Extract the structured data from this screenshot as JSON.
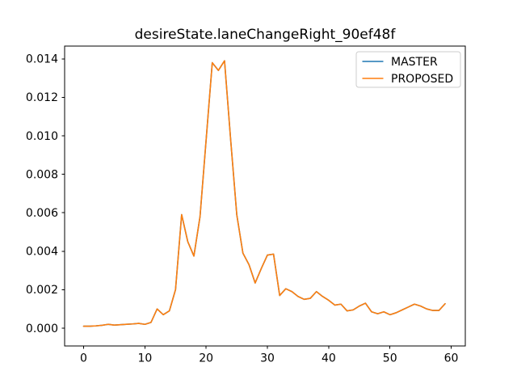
{
  "figure": {
    "background": "#ffffff"
  },
  "chart_data": {
    "type": "line",
    "title": "desireState.laneChangeRight_90ef48f",
    "xlabel": "",
    "ylabel": "",
    "grid": false,
    "legend_position": "upper right",
    "xlim": [
      -3.1,
      62.3
    ],
    "ylim": [
      -0.000925,
      0.014665
    ],
    "xticks": {
      "values": [
        0,
        10,
        20,
        30,
        40,
        50,
        60
      ],
      "labels": [
        "0",
        "10",
        "20",
        "30",
        "40",
        "50",
        "60"
      ]
    },
    "yticks": {
      "values": [
        0.0,
        0.002,
        0.004,
        0.006,
        0.008,
        0.01,
        0.012,
        0.014
      ],
      "labels": [
        "0.000",
        "0.002",
        "0.004",
        "0.006",
        "0.008",
        "0.010",
        "0.012",
        "0.014"
      ]
    },
    "x": [
      0,
      1,
      2,
      3,
      4,
      5,
      6,
      7,
      8,
      9,
      10,
      11,
      12,
      13,
      14,
      15,
      16,
      17,
      18,
      19,
      20,
      21,
      22,
      23,
      24,
      25,
      26,
      27,
      28,
      29,
      30,
      31,
      32,
      33,
      34,
      35,
      36,
      37,
      38,
      39,
      40,
      41,
      42,
      43,
      44,
      45,
      46,
      47,
      48,
      49,
      50,
      51,
      52,
      53,
      54,
      55,
      56,
      57,
      58,
      59
    ],
    "series": [
      {
        "name": "MASTER",
        "color": "#1f77b4",
        "values": [
          0.0001,
          0.0001,
          0.00012,
          0.00015,
          0.0002,
          0.00016,
          0.00018,
          0.0002,
          0.00022,
          0.00025,
          0.0002,
          0.0003,
          0.001,
          0.0007,
          0.0009,
          0.002,
          0.0059,
          0.0045,
          0.00375,
          0.0058,
          0.0098,
          0.0138,
          0.0134,
          0.0139,
          0.0098,
          0.0059,
          0.0039,
          0.0033,
          0.00235,
          0.0031,
          0.0038,
          0.00385,
          0.0017,
          0.00205,
          0.0019,
          0.00165,
          0.0015,
          0.00155,
          0.0019,
          0.00165,
          0.00145,
          0.0012,
          0.00125,
          0.0009,
          0.00095,
          0.00115,
          0.0013,
          0.00085,
          0.00075,
          0.00085,
          0.0007,
          0.0008,
          0.00095,
          0.0011,
          0.00125,
          0.00115,
          0.001,
          0.00092,
          0.00092,
          0.00127
        ]
      },
      {
        "name": "PROPOSED",
        "color": "#ff7f0e",
        "values": [
          0.0001,
          0.0001,
          0.00012,
          0.00015,
          0.0002,
          0.00016,
          0.00018,
          0.0002,
          0.00022,
          0.00025,
          0.0002,
          0.0003,
          0.001,
          0.0007,
          0.0009,
          0.002,
          0.0059,
          0.0045,
          0.00375,
          0.0058,
          0.0098,
          0.0138,
          0.0134,
          0.0139,
          0.0098,
          0.0059,
          0.0039,
          0.0033,
          0.00235,
          0.0031,
          0.0038,
          0.00385,
          0.0017,
          0.00205,
          0.0019,
          0.00165,
          0.0015,
          0.00155,
          0.0019,
          0.00165,
          0.00145,
          0.0012,
          0.00125,
          0.0009,
          0.00095,
          0.00115,
          0.0013,
          0.00085,
          0.00075,
          0.00085,
          0.0007,
          0.0008,
          0.00095,
          0.0011,
          0.00125,
          0.00115,
          0.001,
          0.00092,
          0.00092,
          0.00127
        ]
      }
    ]
  }
}
